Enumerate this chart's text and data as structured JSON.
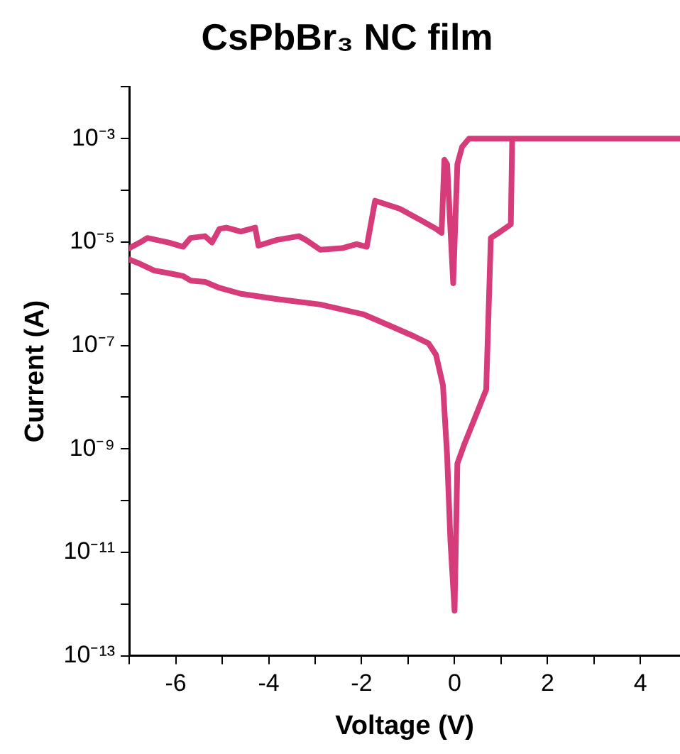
{
  "chart_data": {
    "type": "line",
    "title": "CsPbBr₃ NC film",
    "xlabel": "Voltage (V)",
    "ylabel": "Current (A)",
    "log": "y",
    "grid": false,
    "legend": false,
    "marker": "none",
    "line_style": "solid",
    "xlim": [
      -7,
      4.85
    ],
    "xticks": [
      {
        "value": -7,
        "label": null
      },
      -6,
      {
        "value": -5,
        "label": null
      },
      -4,
      {
        "value": -3,
        "label": null
      },
      -2,
      {
        "value": -1,
        "label": null
      },
      0,
      {
        "value": 1,
        "label": null
      },
      2,
      {
        "value": 3,
        "label": null
      },
      4
    ],
    "ylim": [
      1e-13,
      0.01
    ],
    "yticks": [
      {
        "value": 1e-13,
        "label": "10⁻¹³"
      },
      {
        "value": 1e-12,
        "label": null
      },
      {
        "value": 1e-11,
        "label": "10⁻¹¹"
      },
      {
        "value": 1e-10,
        "label": null
      },
      {
        "value": 1e-09,
        "label": "10⁻⁹"
      },
      {
        "value": 1e-08,
        "label": null
      },
      {
        "value": 1e-07,
        "label": "10⁻⁷"
      },
      {
        "value": 1e-06,
        "label": null
      },
      {
        "value": 1e-05,
        "label": "10⁻⁵"
      },
      {
        "value": 0.0001,
        "label": null
      },
      {
        "value": 0.001,
        "label": "10⁻³"
      },
      {
        "value": 0.01,
        "label": null
      }
    ],
    "series": [
      {
        "color": "#d63c7a",
        "x": [
          -7,
          -6.77,
          -6.46,
          -6.15,
          -5.84,
          -5.68,
          -5.37,
          -5.06,
          -4.6,
          -3.82,
          -2.89,
          -1.96,
          -1.34,
          -0.87,
          -0.56,
          -0.4,
          -0.25,
          -0.16,
          -0.09,
          0,
          0.06,
          0.22,
          0.47,
          0.68,
          0.78,
          0.99,
          1.21,
          1.24,
          4.85,
          0.31,
          0.16,
          0.06,
          -0.03,
          -0.16,
          -0.22,
          -0.28,
          -0.4,
          -0.71,
          -1.18,
          -1.71,
          -1.89,
          -2.11,
          -2.42,
          -2.89,
          -3.2,
          -3.35,
          -3.82,
          -4.22,
          -4.29,
          -4.6,
          -4.91,
          -5.06,
          -5.22,
          -5.37,
          -5.68,
          -5.84,
          -6.15,
          -6.61,
          -6.77,
          -7
        ],
        "values": [
          4.6e-06,
          3.8e-06,
          2.8e-06,
          2.5e-06,
          2.2e-06,
          1.8e-06,
          1.7e-06,
          1.3e-06,
          1e-06,
          7.9e-07,
          6.2e-07,
          4e-07,
          2.3e-07,
          1.5e-07,
          1.1e-07,
          6.6e-08,
          1.7e-08,
          7.2e-10,
          1.7e-11,
          7.4e-13,
          5.2e-10,
          1.3e-09,
          4.7e-09,
          1.4e-08,
          1.2e-05,
          1.6e-05,
          2.2e-05,
          0.001,
          0.001,
          0.001,
          0.00069,
          0.00032,
          1.6e-06,
          0.00032,
          0.00039,
          1.5e-05,
          1.8e-05,
          2.6e-05,
          4.4e-05,
          6.3e-05,
          8.1e-06,
          9.1e-06,
          7.6e-06,
          7.1e-06,
          1.1e-05,
          1.3e-05,
          1.1e-05,
          8.5e-06,
          1.9e-05,
          1.6e-05,
          1.9e-05,
          1.8e-05,
          9.8e-06,
          1.3e-05,
          1.2e-05,
          8.1e-06,
          9.8e-06,
          1.2e-05,
          9.8e-06,
          7.6e-06
        ]
      }
    ]
  }
}
